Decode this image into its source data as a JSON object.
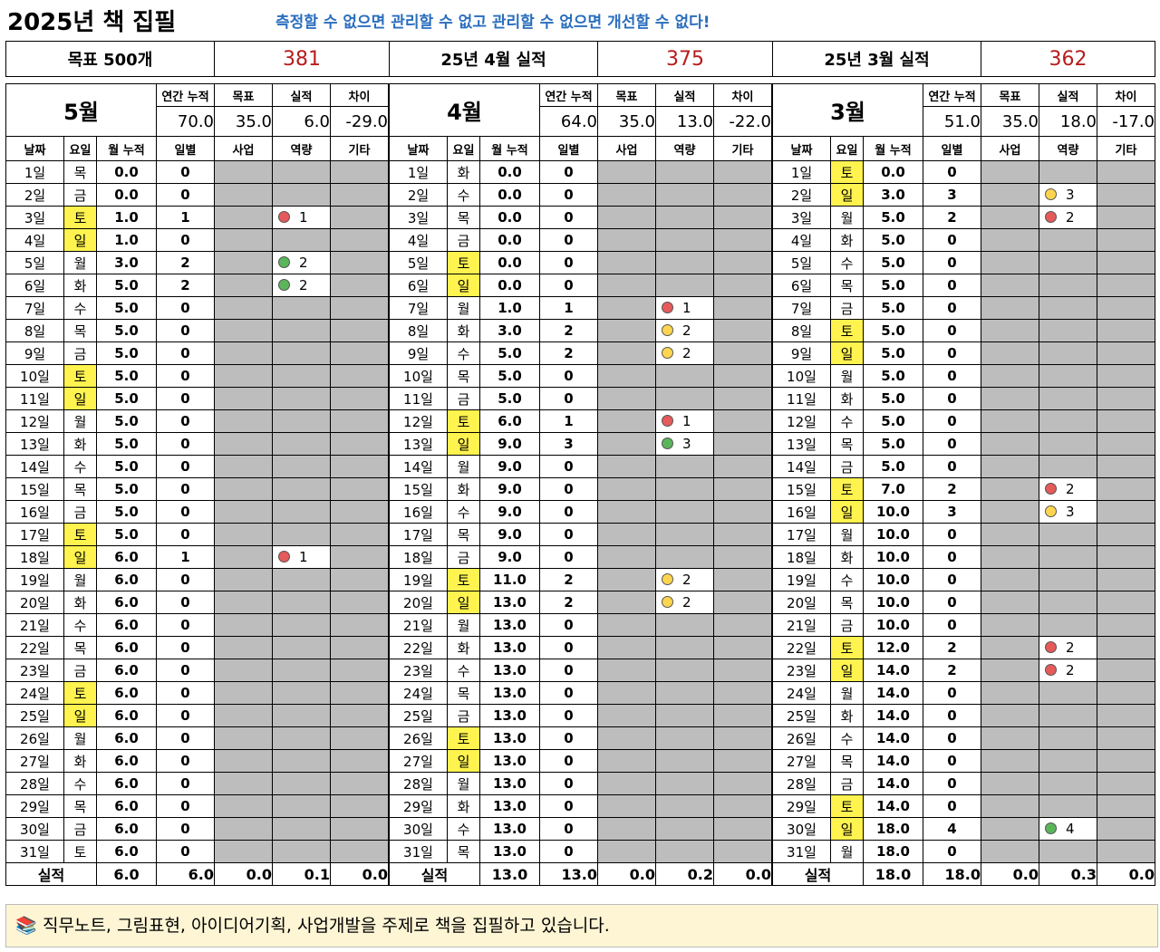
{
  "title": "2025년 책 집필",
  "motto": "측정할 수 없으면 관리할 수 없고 관리할 수 없으면 개선할 수 없다!",
  "summary": [
    {
      "label": "목표 500개",
      "value": "381"
    },
    {
      "label": "25년 4월 실적",
      "value": "375"
    },
    {
      "label": "25년 3월 실적",
      "value": "362"
    }
  ],
  "labels": {
    "annual": "연간 누적",
    "target": "목표",
    "actual": "실적",
    "diff": "차이",
    "date": "날짜",
    "weekday": "요일",
    "month_cum": "월 누적",
    "daily": "일별",
    "business": "사업",
    "capacity": "역량",
    "other": "기타",
    "total": "실적"
  },
  "months": [
    {
      "name": "5월",
      "annual": "70.0",
      "target": "35.0",
      "actual": "6.0",
      "diff": "-29.0",
      "days": [
        [
          "1일",
          "목",
          "0.0",
          "0",
          "",
          ""
        ],
        [
          "2일",
          "금",
          "0.0",
          "0",
          "",
          ""
        ],
        [
          "3일",
          "토",
          "1.0",
          "1",
          "red",
          "1"
        ],
        [
          "4일",
          "일",
          "1.0",
          "0",
          "",
          ""
        ],
        [
          "5일",
          "월",
          "3.0",
          "2",
          "green",
          "2"
        ],
        [
          "6일",
          "화",
          "5.0",
          "2",
          "green",
          "2"
        ],
        [
          "7일",
          "수",
          "5.0",
          "0",
          "",
          ""
        ],
        [
          "8일",
          "목",
          "5.0",
          "0",
          "",
          ""
        ],
        [
          "9일",
          "금",
          "5.0",
          "0",
          "",
          ""
        ],
        [
          "10일",
          "토",
          "5.0",
          "0",
          "",
          ""
        ],
        [
          "11일",
          "일",
          "5.0",
          "0",
          "",
          ""
        ],
        [
          "12일",
          "월",
          "5.0",
          "0",
          "",
          ""
        ],
        [
          "13일",
          "화",
          "5.0",
          "0",
          "",
          ""
        ],
        [
          "14일",
          "수",
          "5.0",
          "0",
          "",
          ""
        ],
        [
          "15일",
          "목",
          "5.0",
          "0",
          "",
          ""
        ],
        [
          "16일",
          "금",
          "5.0",
          "0",
          "",
          ""
        ],
        [
          "17일",
          "토",
          "5.0",
          "0",
          "",
          ""
        ],
        [
          "18일",
          "일",
          "6.0",
          "1",
          "red",
          "1"
        ],
        [
          "19일",
          "월",
          "6.0",
          "0",
          "",
          ""
        ],
        [
          "20일",
          "화",
          "6.0",
          "0",
          "",
          ""
        ],
        [
          "21일",
          "수",
          "6.0",
          "0",
          "",
          ""
        ],
        [
          "22일",
          "목",
          "6.0",
          "0",
          "",
          ""
        ],
        [
          "23일",
          "금",
          "6.0",
          "0",
          "",
          ""
        ],
        [
          "24일",
          "토",
          "6.0",
          "0",
          "",
          ""
        ],
        [
          "25일",
          "일",
          "6.0",
          "0",
          "",
          ""
        ],
        [
          "26일",
          "월",
          "6.0",
          "0",
          "",
          ""
        ],
        [
          "27일",
          "화",
          "6.0",
          "0",
          "",
          ""
        ],
        [
          "28일",
          "수",
          "6.0",
          "0",
          "",
          ""
        ],
        [
          "29일",
          "목",
          "6.0",
          "0",
          "",
          ""
        ],
        [
          "30일",
          "금",
          "6.0",
          "0",
          "",
          ""
        ],
        [
          "31일",
          "토",
          "6.0",
          "0",
          "",
          ""
        ]
      ],
      "yellow": [
        2,
        3,
        9,
        10,
        16,
        17,
        23,
        24
      ],
      "totals": [
        "6.0",
        "6.0",
        "0.0",
        "0.1",
        "0.0"
      ]
    },
    {
      "name": "4월",
      "annual": "64.0",
      "target": "35.0",
      "actual": "13.0",
      "diff": "-22.0",
      "days": [
        [
          "1일",
          "화",
          "0.0",
          "0",
          "",
          ""
        ],
        [
          "2일",
          "수",
          "0.0",
          "0",
          "",
          ""
        ],
        [
          "3일",
          "목",
          "0.0",
          "0",
          "",
          ""
        ],
        [
          "4일",
          "금",
          "0.0",
          "0",
          "",
          ""
        ],
        [
          "5일",
          "토",
          "0.0",
          "0",
          "",
          ""
        ],
        [
          "6일",
          "일",
          "0.0",
          "0",
          "",
          ""
        ],
        [
          "7일",
          "월",
          "1.0",
          "1",
          "red",
          "1"
        ],
        [
          "8일",
          "화",
          "3.0",
          "2",
          "yellow",
          "2"
        ],
        [
          "9일",
          "수",
          "5.0",
          "2",
          "yellow",
          "2"
        ],
        [
          "10일",
          "목",
          "5.0",
          "0",
          "",
          ""
        ],
        [
          "11일",
          "금",
          "5.0",
          "0",
          "",
          ""
        ],
        [
          "12일",
          "토",
          "6.0",
          "1",
          "red",
          "1"
        ],
        [
          "13일",
          "일",
          "9.0",
          "3",
          "green",
          "3"
        ],
        [
          "14일",
          "월",
          "9.0",
          "0",
          "",
          ""
        ],
        [
          "15일",
          "화",
          "9.0",
          "0",
          "",
          ""
        ],
        [
          "16일",
          "수",
          "9.0",
          "0",
          "",
          ""
        ],
        [
          "17일",
          "목",
          "9.0",
          "0",
          "",
          ""
        ],
        [
          "18일",
          "금",
          "9.0",
          "0",
          "",
          ""
        ],
        [
          "19일",
          "토",
          "11.0",
          "2",
          "yellow",
          "2"
        ],
        [
          "20일",
          "일",
          "13.0",
          "2",
          "yellow",
          "2"
        ],
        [
          "21일",
          "월",
          "13.0",
          "0",
          "",
          ""
        ],
        [
          "22일",
          "화",
          "13.0",
          "0",
          "",
          ""
        ],
        [
          "23일",
          "수",
          "13.0",
          "0",
          "",
          ""
        ],
        [
          "24일",
          "목",
          "13.0",
          "0",
          "",
          ""
        ],
        [
          "25일",
          "금",
          "13.0",
          "0",
          "",
          ""
        ],
        [
          "26일",
          "토",
          "13.0",
          "0",
          "",
          ""
        ],
        [
          "27일",
          "일",
          "13.0",
          "0",
          "",
          ""
        ],
        [
          "28일",
          "월",
          "13.0",
          "0",
          "",
          ""
        ],
        [
          "29일",
          "화",
          "13.0",
          "0",
          "",
          ""
        ],
        [
          "30일",
          "수",
          "13.0",
          "0",
          "",
          ""
        ],
        [
          "31일",
          "목",
          "13.0",
          "0",
          "",
          ""
        ]
      ],
      "yellow": [
        4,
        5,
        11,
        12,
        18,
        19,
        25,
        26
      ],
      "totals": [
        "13.0",
        "13.0",
        "0.0",
        "0.2",
        "0.0"
      ]
    },
    {
      "name": "3월",
      "annual": "51.0",
      "target": "35.0",
      "actual": "18.0",
      "diff": "-17.0",
      "days": [
        [
          "1일",
          "토",
          "0.0",
          "0",
          "",
          ""
        ],
        [
          "2일",
          "일",
          "3.0",
          "3",
          "yellow",
          "3"
        ],
        [
          "3일",
          "월",
          "5.0",
          "2",
          "red",
          "2"
        ],
        [
          "4일",
          "화",
          "5.0",
          "0",
          "",
          ""
        ],
        [
          "5일",
          "수",
          "5.0",
          "0",
          "",
          ""
        ],
        [
          "6일",
          "목",
          "5.0",
          "0",
          "",
          ""
        ],
        [
          "7일",
          "금",
          "5.0",
          "0",
          "",
          ""
        ],
        [
          "8일",
          "토",
          "5.0",
          "0",
          "",
          ""
        ],
        [
          "9일",
          "일",
          "5.0",
          "0",
          "",
          ""
        ],
        [
          "10일",
          "월",
          "5.0",
          "0",
          "",
          ""
        ],
        [
          "11일",
          "화",
          "5.0",
          "0",
          "",
          ""
        ],
        [
          "12일",
          "수",
          "5.0",
          "0",
          "",
          ""
        ],
        [
          "13일",
          "목",
          "5.0",
          "0",
          "",
          ""
        ],
        [
          "14일",
          "금",
          "5.0",
          "0",
          "",
          ""
        ],
        [
          "15일",
          "토",
          "7.0",
          "2",
          "red",
          "2"
        ],
        [
          "16일",
          "일",
          "10.0",
          "3",
          "yellow",
          "3"
        ],
        [
          "17일",
          "월",
          "10.0",
          "0",
          "",
          ""
        ],
        [
          "18일",
          "화",
          "10.0",
          "0",
          "",
          ""
        ],
        [
          "19일",
          "수",
          "10.0",
          "0",
          "",
          ""
        ],
        [
          "20일",
          "목",
          "10.0",
          "0",
          "",
          ""
        ],
        [
          "21일",
          "금",
          "10.0",
          "0",
          "",
          ""
        ],
        [
          "22일",
          "토",
          "12.0",
          "2",
          "red",
          "2"
        ],
        [
          "23일",
          "일",
          "14.0",
          "2",
          "red",
          "2"
        ],
        [
          "24일",
          "월",
          "14.0",
          "0",
          "",
          ""
        ],
        [
          "25일",
          "화",
          "14.0",
          "0",
          "",
          ""
        ],
        [
          "26일",
          "수",
          "14.0",
          "0",
          "",
          ""
        ],
        [
          "27일",
          "목",
          "14.0",
          "0",
          "",
          ""
        ],
        [
          "28일",
          "금",
          "14.0",
          "0",
          "",
          ""
        ],
        [
          "29일",
          "토",
          "14.0",
          "0",
          "",
          ""
        ],
        [
          "30일",
          "일",
          "18.0",
          "4",
          "green",
          "4"
        ],
        [
          "31일",
          "월",
          "18.0",
          "0",
          "",
          ""
        ]
      ],
      "yellow": [
        0,
        1,
        7,
        8,
        14,
        15,
        21,
        22,
        28,
        29
      ],
      "totals": [
        "18.0",
        "18.0",
        "0.0",
        "0.3",
        "0.0"
      ]
    }
  ],
  "footer": {
    "icon": "books-icon",
    "text": "직무노트, 그림표현, 아이디어기획, 사업개발을 주제로 책을 집필하고 있습니다."
  }
}
